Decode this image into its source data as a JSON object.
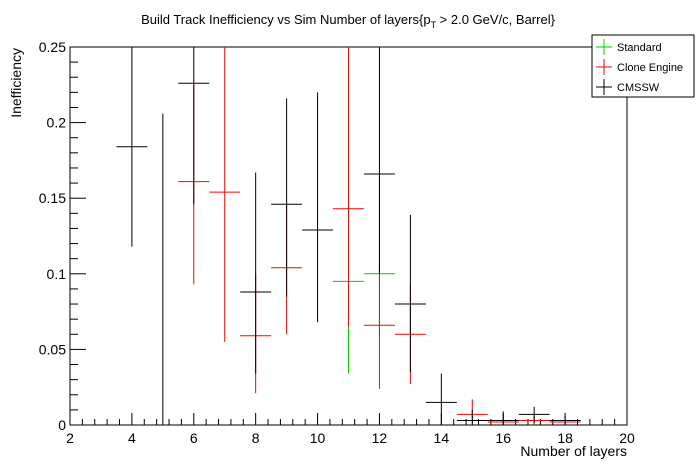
{
  "chart_data": {
    "type": "scatter",
    "title": "Build Track Inefficiency vs Sim Number of layers",
    "title_suffix": {
      "open": "{p",
      "sub": "T",
      "rest": " > 2.0 GeV/c, Barrel}"
    },
    "xlabel": "Number of layers",
    "ylabel": "Inefficiency",
    "xlim": [
      2,
      20
    ],
    "ylim": [
      0,
      0.25
    ],
    "x_ticks": [
      2,
      4,
      6,
      8,
      10,
      12,
      14,
      16,
      18,
      20
    ],
    "y_ticks": [
      0,
      0.05,
      0.1,
      0.15,
      0.2,
      0.25
    ],
    "y_tick_labels": [
      "0",
      "0.05",
      "0.1",
      "0.15",
      "0.2",
      "0.25"
    ],
    "legend_position": "top-right",
    "series": [
      {
        "name": "Standard",
        "color": "#00cc00",
        "points": [
          {
            "x": 11,
            "y": 0.095,
            "ylo": 0.034,
            "yhi": 0.145
          },
          {
            "x": 12,
            "y": 0.1,
            "ylo": 0.06,
            "yhi": 0.165
          }
        ]
      },
      {
        "name": "Clone Engine",
        "color": "#ff0000",
        "points": [
          {
            "x": 6,
            "y": 0.161,
            "ylo": 0.093,
            "yhi": 0.225
          },
          {
            "x": 7,
            "y": 0.154,
            "ylo": 0.055,
            "yhi": 0.25
          },
          {
            "x": 8,
            "y": 0.059,
            "ylo": 0.021,
            "yhi": 0.1
          },
          {
            "x": 9,
            "y": 0.104,
            "ylo": 0.06,
            "yhi": 0.147
          },
          {
            "x": 11,
            "y": 0.143,
            "ylo": 0.065,
            "yhi": 0.25
          },
          {
            "x": 12,
            "y": 0.066,
            "ylo": 0.024,
            "yhi": 0.105
          },
          {
            "x": 13,
            "y": 0.06,
            "ylo": 0.027,
            "yhi": 0.093
          },
          {
            "x": 15,
            "y": 0.007,
            "ylo": 0.001,
            "yhi": 0.017
          },
          {
            "x": 16,
            "y": 0.002,
            "ylo": 0.0,
            "yhi": 0.007
          },
          {
            "x": 17,
            "y": 0.003,
            "ylo": 0.0,
            "yhi": 0.006
          },
          {
            "x": 18,
            "y": 0.002,
            "ylo": 0.0,
            "yhi": 0.006
          }
        ]
      },
      {
        "name": "CMSSW",
        "color": "#000000",
        "points": [
          {
            "x": 4,
            "y": 0.184,
            "ylo": 0.118,
            "yhi": 0.25
          },
          {
            "x": 5,
            "y": 0.0,
            "ylo": 0.0,
            "yhi": 0.206
          },
          {
            "x": 6,
            "y": 0.226,
            "ylo": 0.146,
            "yhi": 0.25
          },
          {
            "x": 8,
            "y": 0.088,
            "ylo": 0.034,
            "yhi": 0.167
          },
          {
            "x": 9,
            "y": 0.146,
            "ylo": 0.085,
            "yhi": 0.216
          },
          {
            "x": 10,
            "y": 0.129,
            "ylo": 0.068,
            "yhi": 0.22
          },
          {
            "x": 12,
            "y": 0.166,
            "ylo": 0.1,
            "yhi": 0.25
          },
          {
            "x": 13,
            "y": 0.08,
            "ylo": 0.035,
            "yhi": 0.139
          },
          {
            "x": 14,
            "y": 0.015,
            "ylo": 0.0,
            "yhi": 0.034
          },
          {
            "x": 15,
            "y": 0.003,
            "ylo": 0.0,
            "yhi": 0.01
          },
          {
            "x": 16,
            "y": 0.003,
            "ylo": 0.0,
            "yhi": 0.009
          },
          {
            "x": 17,
            "y": 0.007,
            "ylo": 0.001,
            "yhi": 0.012
          },
          {
            "x": 18,
            "y": 0.003,
            "ylo": 0.0,
            "yhi": 0.006
          }
        ]
      }
    ]
  }
}
